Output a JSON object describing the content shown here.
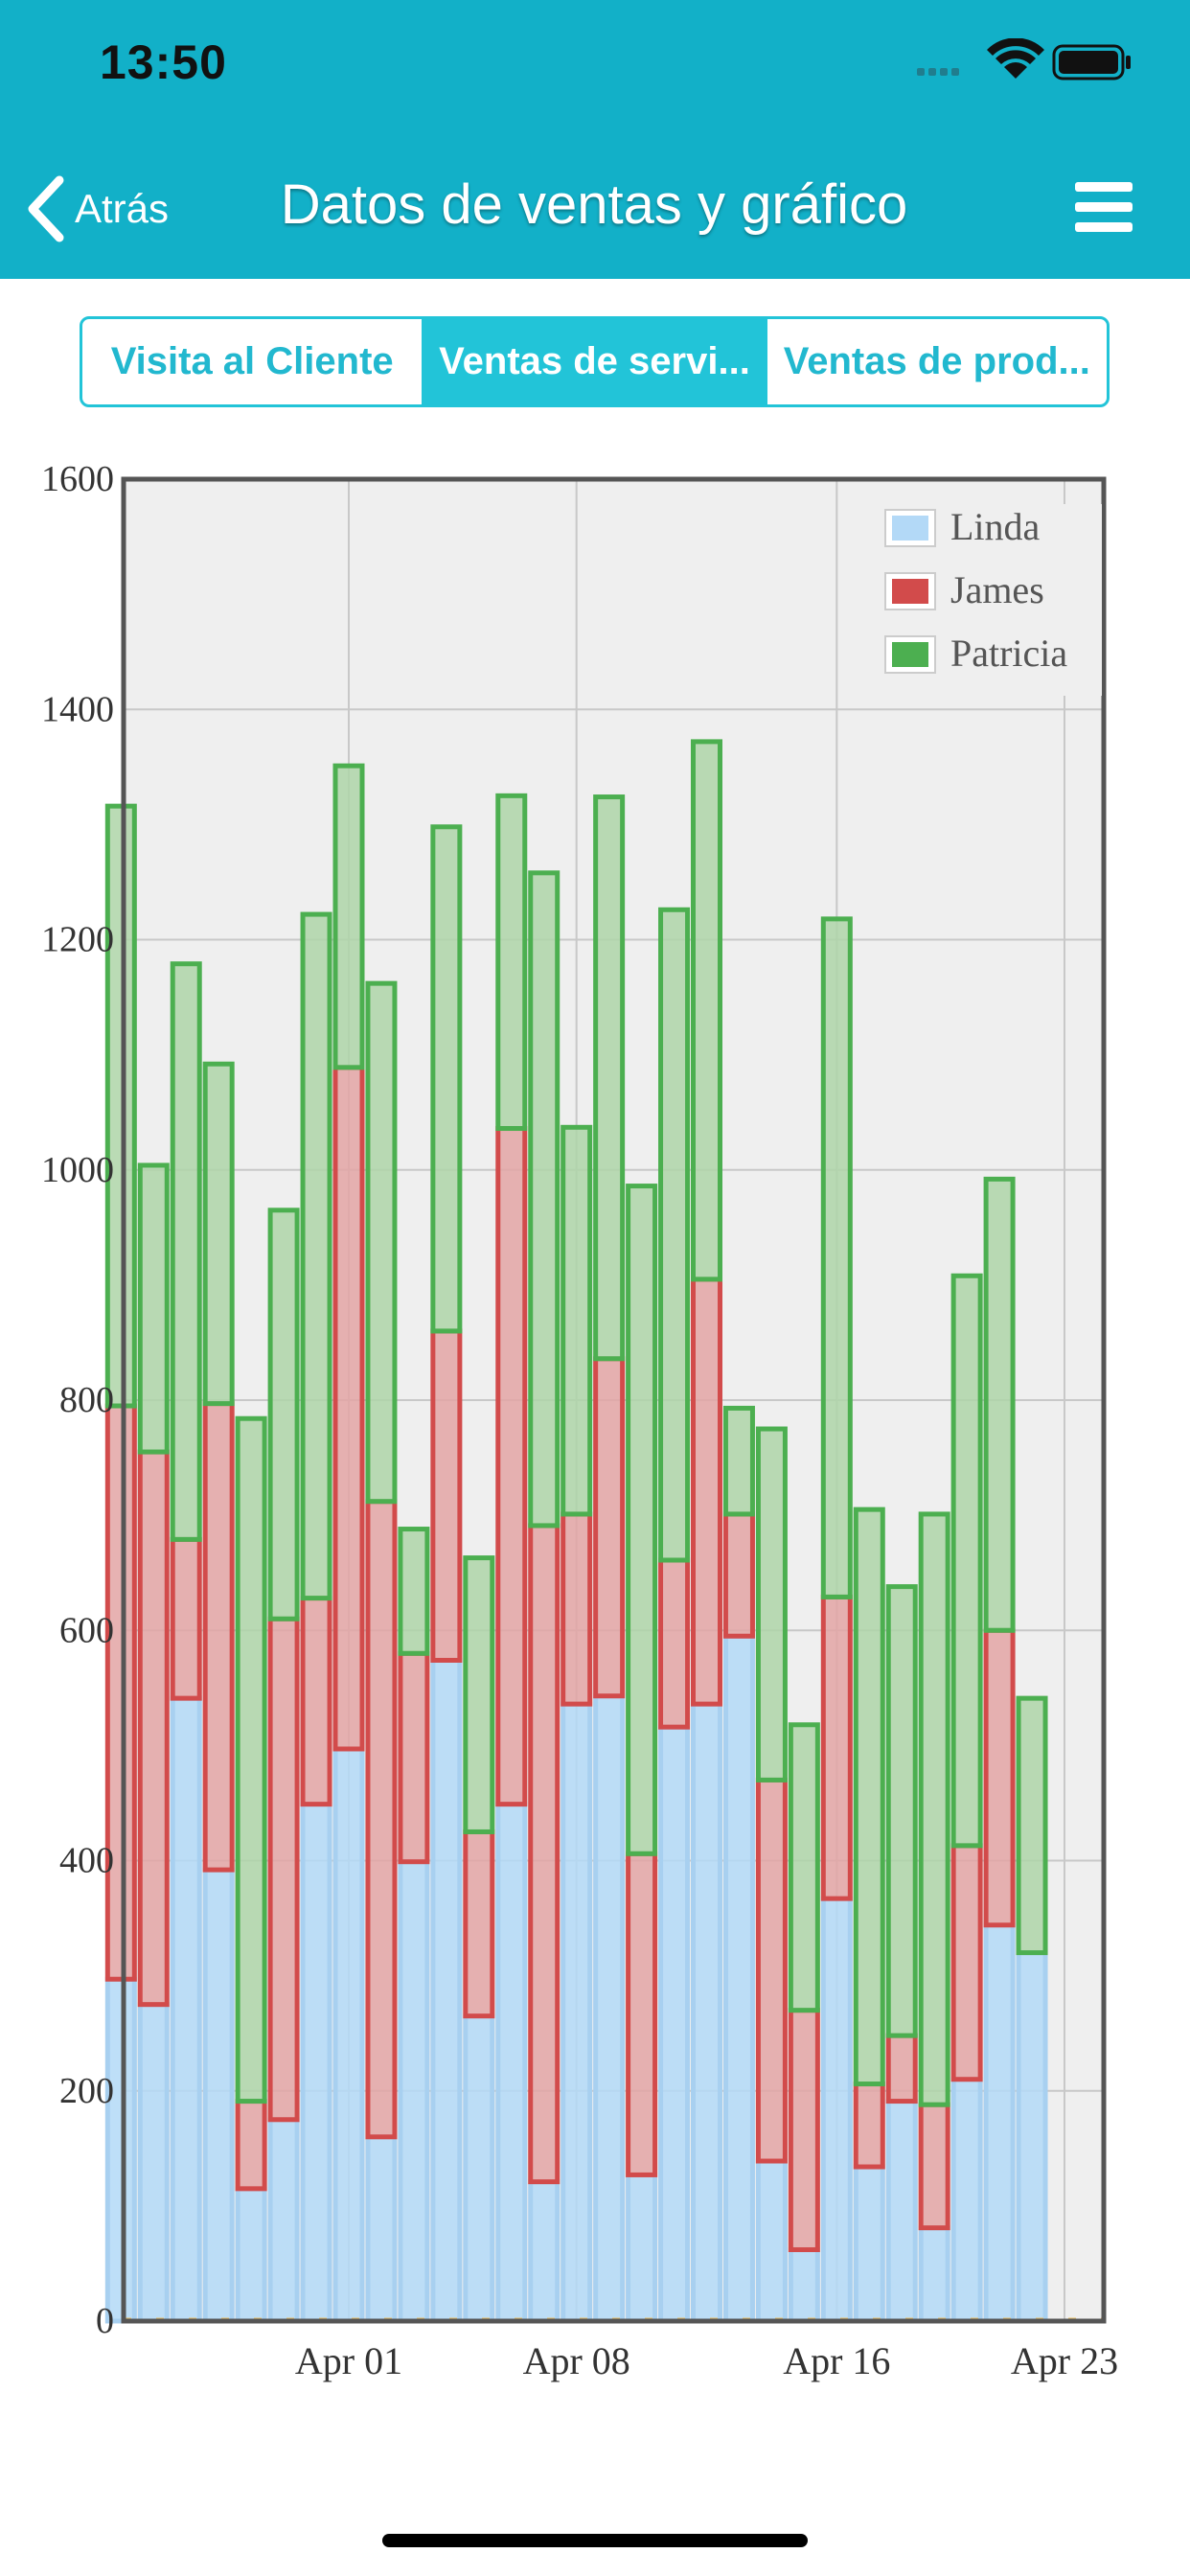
{
  "status_bar": {
    "time": "13:50"
  },
  "nav": {
    "back_label": "Atrás",
    "title": "Datos de ventas y gráfico"
  },
  "tabs": [
    {
      "label": "Visita al Cliente",
      "active": false
    },
    {
      "label": "Ventas de servi...",
      "active": true
    },
    {
      "label": "Ventas de prod...",
      "active": false
    }
  ],
  "colors": {
    "nav_bg": "#12b0c8",
    "accent": "#22c4d8"
  },
  "chart_data": {
    "type": "bar",
    "stacked": true,
    "title": "",
    "xlabel": "",
    "ylabel": "",
    "ylim": [
      0,
      1600
    ],
    "yticks": [
      0,
      200,
      400,
      600,
      800,
      1000,
      1200,
      1400,
      1600
    ],
    "xtick_labels": [
      {
        "label": "Apr 01",
        "date": "2019-04-01"
      },
      {
        "label": "Apr 08",
        "date": "2019-04-08"
      },
      {
        "label": "Apr 16",
        "date": "2019-04-16"
      },
      {
        "label": "Apr 23",
        "date": "2019-04-23"
      }
    ],
    "grid": true,
    "legend": "top-right",
    "categories": [
      "2019-03-25",
      "2019-03-26",
      "2019-03-27",
      "2019-03-28",
      "2019-03-29",
      "2019-03-30",
      "2019-03-31",
      "2019-04-01",
      "2019-04-02",
      "2019-04-03",
      "2019-04-04",
      "2019-04-05",
      "2019-04-06",
      "2019-04-07",
      "2019-04-08",
      "2019-04-09",
      "2019-04-10",
      "2019-04-11",
      "2019-04-12",
      "2019-04-13",
      "2019-04-14",
      "2019-04-15",
      "2019-04-16",
      "2019-04-17",
      "2019-04-18",
      "2019-04-19",
      "2019-04-20",
      "2019-04-21",
      "2019-04-22"
    ],
    "series": [
      {
        "name": "Linda",
        "color": "#b3d9f7",
        "stroke": "#a8d0f0",
        "values": [
          297,
          275,
          541,
          392,
          115,
          175,
          449,
          497,
          160,
          399,
          574,
          265,
          449,
          121,
          536,
          543,
          127,
          516,
          536,
          595,
          139,
          62,
          367,
          134,
          191,
          81,
          210,
          344,
          320
        ]
      },
      {
        "name": "James",
        "color": "#e3a4a4",
        "stroke": "#d24b4b",
        "values": [
          498,
          480,
          138,
          405,
          76,
          435,
          179,
          592,
          552,
          181,
          286,
          160,
          587,
          570,
          165,
          293,
          279,
          145,
          369,
          106,
          331,
          208,
          262,
          72,
          57,
          107,
          203,
          256,
          0
        ]
      },
      {
        "name": "Patricia",
        "color": "#aed5a8",
        "stroke": "#4caf50",
        "values": [
          521,
          249,
          500,
          295,
          593,
          355,
          594,
          262,
          450,
          108,
          438,
          238,
          289,
          567,
          336,
          488,
          580,
          565,
          467,
          92,
          305,
          248,
          589,
          499,
          390,
          513,
          495,
          392,
          221
        ]
      }
    ]
  }
}
